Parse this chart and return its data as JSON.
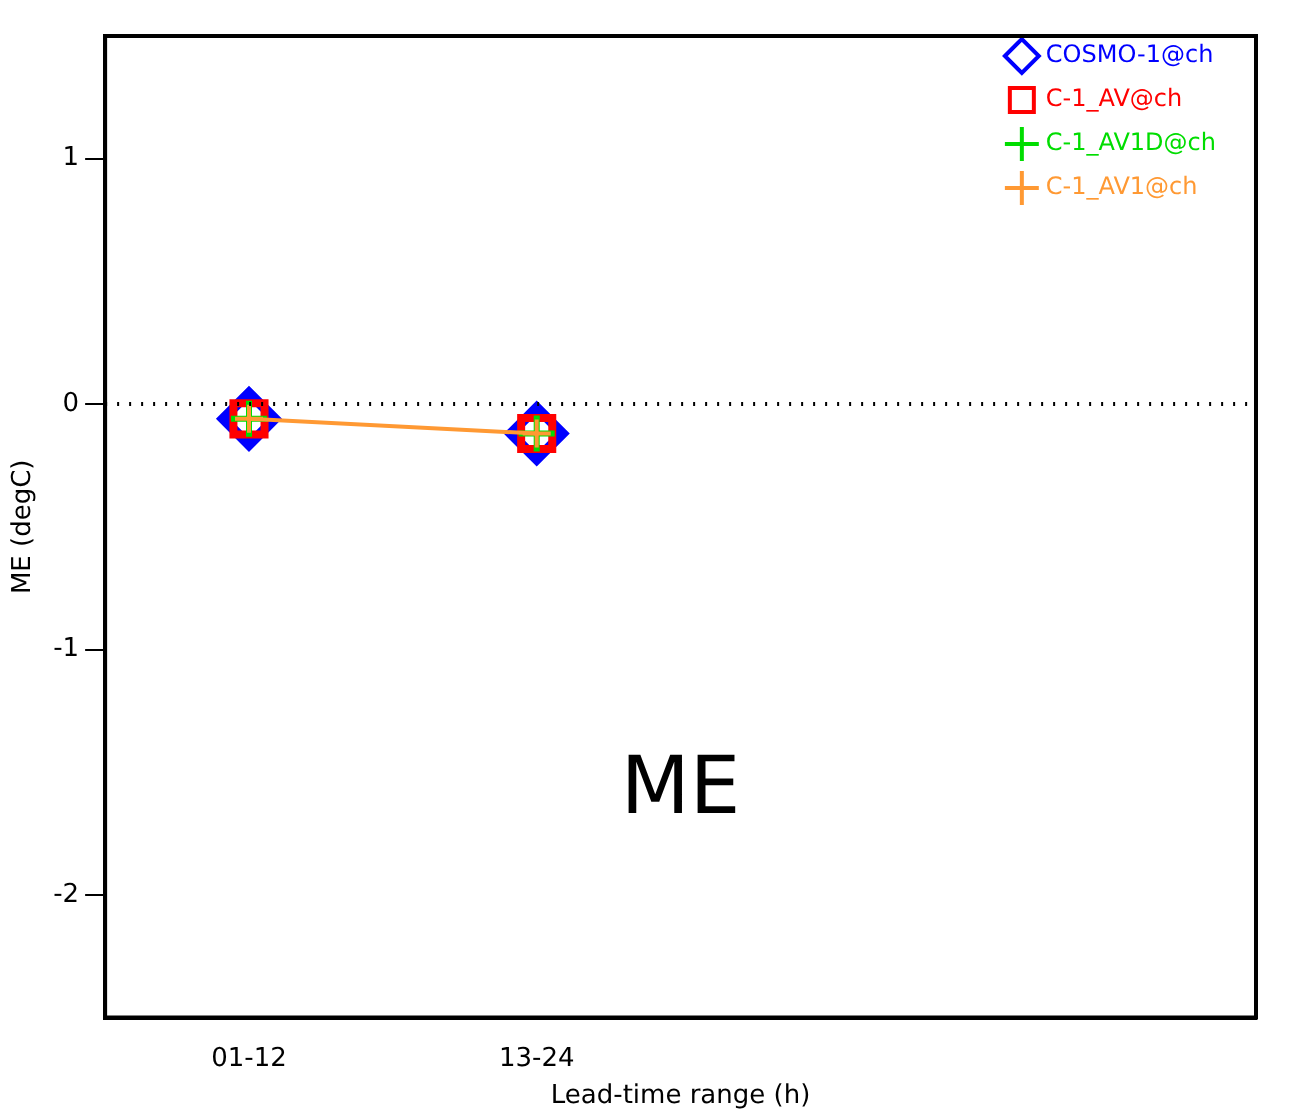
{
  "chart_data": {
    "type": "line",
    "xlabel": "Lead-time range (h)",
    "ylabel": "ME (degC)",
    "categories": [
      "01-12",
      "13-24",
      null,
      null
    ],
    "series": [
      {
        "name": "COSMO-1@ch",
        "type": "scatter",
        "color": "#0000ff",
        "marker": "diamond",
        "values": [
          -0.06,
          -0.12,
          null,
          null
        ]
      },
      {
        "name": "C-1_AV@ch",
        "type": "scatter",
        "color": "#ff0000",
        "marker": "square",
        "values": [
          -0.06,
          -0.12,
          null,
          null
        ]
      },
      {
        "name": "C-1_AV1D@ch",
        "type": "scatter",
        "color": "#00dd00",
        "marker": "cross",
        "values": [
          -0.06,
          -0.12,
          null,
          null
        ]
      },
      {
        "name": "C-1_AV1@ch",
        "color": "#ff9933",
        "marker": "cross",
        "values": [
          -0.06,
          -0.12,
          null,
          null
        ]
      }
    ],
    "ylim": [
      -2.5,
      1.5
    ],
    "yticks": [
      -2,
      -1,
      0,
      1
    ],
    "ref_lines": [
      {
        "axis": "y",
        "value": 0,
        "line_style": "dotted",
        "color": "#000000"
      }
    ],
    "annotations": [
      {
        "text": "ME"
      }
    ],
    "legend": "top right",
    "grid": false
  }
}
